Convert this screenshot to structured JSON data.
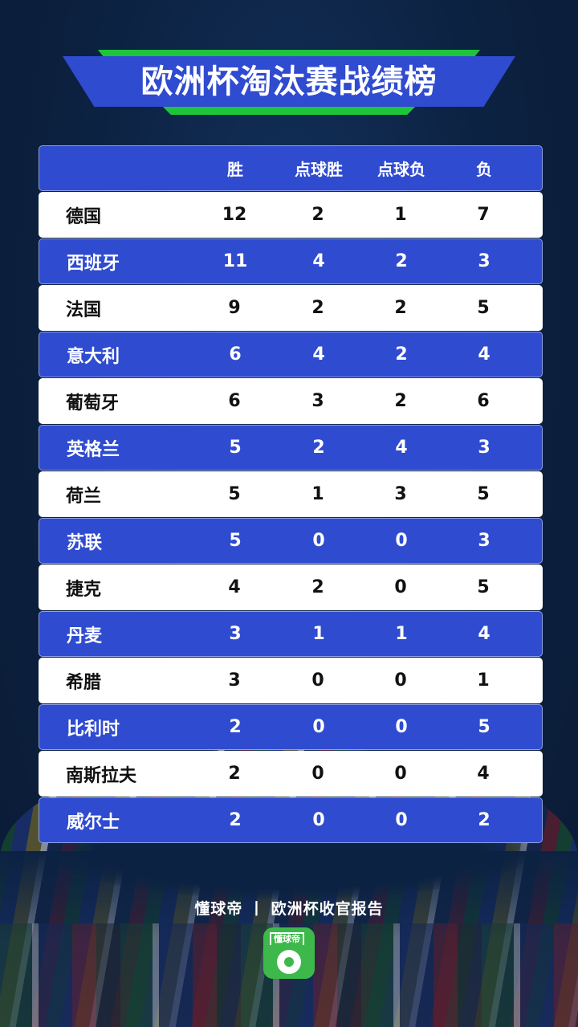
{
  "title": "欧洲杯淘汰赛战绩榜",
  "colors": {
    "accent_blue": "#2f4bd0",
    "accent_green": "#1ec43a",
    "background": "#0c2242"
  },
  "table": {
    "headers": [
      "",
      "胜",
      "点球胜",
      "点球负",
      "负"
    ],
    "rows": [
      [
        "德国",
        "12",
        "2",
        "1",
        "7"
      ],
      [
        "西班牙",
        "11",
        "4",
        "2",
        "3"
      ],
      [
        "法国",
        "9",
        "2",
        "2",
        "5"
      ],
      [
        "意大利",
        "6",
        "4",
        "2",
        "4"
      ],
      [
        "葡萄牙",
        "6",
        "3",
        "2",
        "6"
      ],
      [
        "英格兰",
        "5",
        "2",
        "4",
        "3"
      ],
      [
        "荷兰",
        "5",
        "1",
        "3",
        "5"
      ],
      [
        "苏联",
        "5",
        "0",
        "0",
        "3"
      ],
      [
        "捷克",
        "4",
        "2",
        "0",
        "5"
      ],
      [
        "丹麦",
        "3",
        "1",
        "1",
        "4"
      ],
      [
        "希腊",
        "3",
        "0",
        "0",
        "1"
      ],
      [
        "比利时",
        "2",
        "0",
        "0",
        "5"
      ],
      [
        "南斯拉夫",
        "2",
        "0",
        "0",
        "4"
      ],
      [
        "威尔士",
        "2",
        "0",
        "0",
        "2"
      ]
    ]
  },
  "footer": {
    "text": "懂球帝 丨 欧洲杯收官报告",
    "logo_text": "懂球帝",
    "logo_icon": "soccer-ball-icon"
  }
}
